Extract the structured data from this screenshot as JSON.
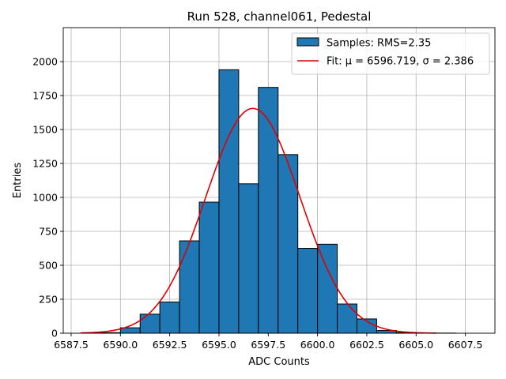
{
  "chart_data": {
    "type": "bar",
    "title": "Run 528, channel061, Pedestal",
    "xlabel": "ADC Counts",
    "ylabel": "Entries",
    "xlim": [
      6587.1,
      6609.0
    ],
    "ylim": [
      0,
      2250
    ],
    "xticks": [
      6587.5,
      6590.0,
      6592.5,
      6595.0,
      6597.5,
      6600.0,
      6602.5,
      6605.0,
      6607.5
    ],
    "xtick_labels": [
      "6587.5",
      "6590.0",
      "6592.5",
      "6595.0",
      "6597.5",
      "6600.0",
      "6602.5",
      "6605.0",
      "6607.5"
    ],
    "yticks": [
      0,
      250,
      500,
      750,
      1000,
      1250,
      1500,
      1750,
      2000
    ],
    "ytick_labels": [
      "0",
      "250",
      "500",
      "750",
      "1000",
      "1250",
      "1500",
      "1750",
      "2000"
    ],
    "grid": true,
    "legend_position": "top-right",
    "series": [
      {
        "name": "Samples: RMS=2.35",
        "kind": "histogram",
        "color": "#1f77b4",
        "edgecolor": "#000000",
        "bin_edges": [
          6588,
          6589,
          6590,
          6591,
          6592,
          6593,
          6594,
          6595,
          6596,
          6597,
          6598,
          6599,
          6600,
          6601,
          6602,
          6603,
          6604,
          6605,
          6606,
          6607,
          6608
        ],
        "counts": [
          2,
          4,
          40,
          140,
          230,
          680,
          965,
          1940,
          1100,
          1810,
          1315,
          625,
          655,
          215,
          105,
          20,
          5,
          2,
          1,
          0
        ]
      },
      {
        "name": "Fit: μ = 6596.719, σ = 2.386",
        "kind": "gaussian-fit",
        "color": "#e00000",
        "mu": 6596.719,
        "sigma": 2.386,
        "amplitude": 1655,
        "x_range": [
          6588,
          6606
        ]
      }
    ]
  }
}
